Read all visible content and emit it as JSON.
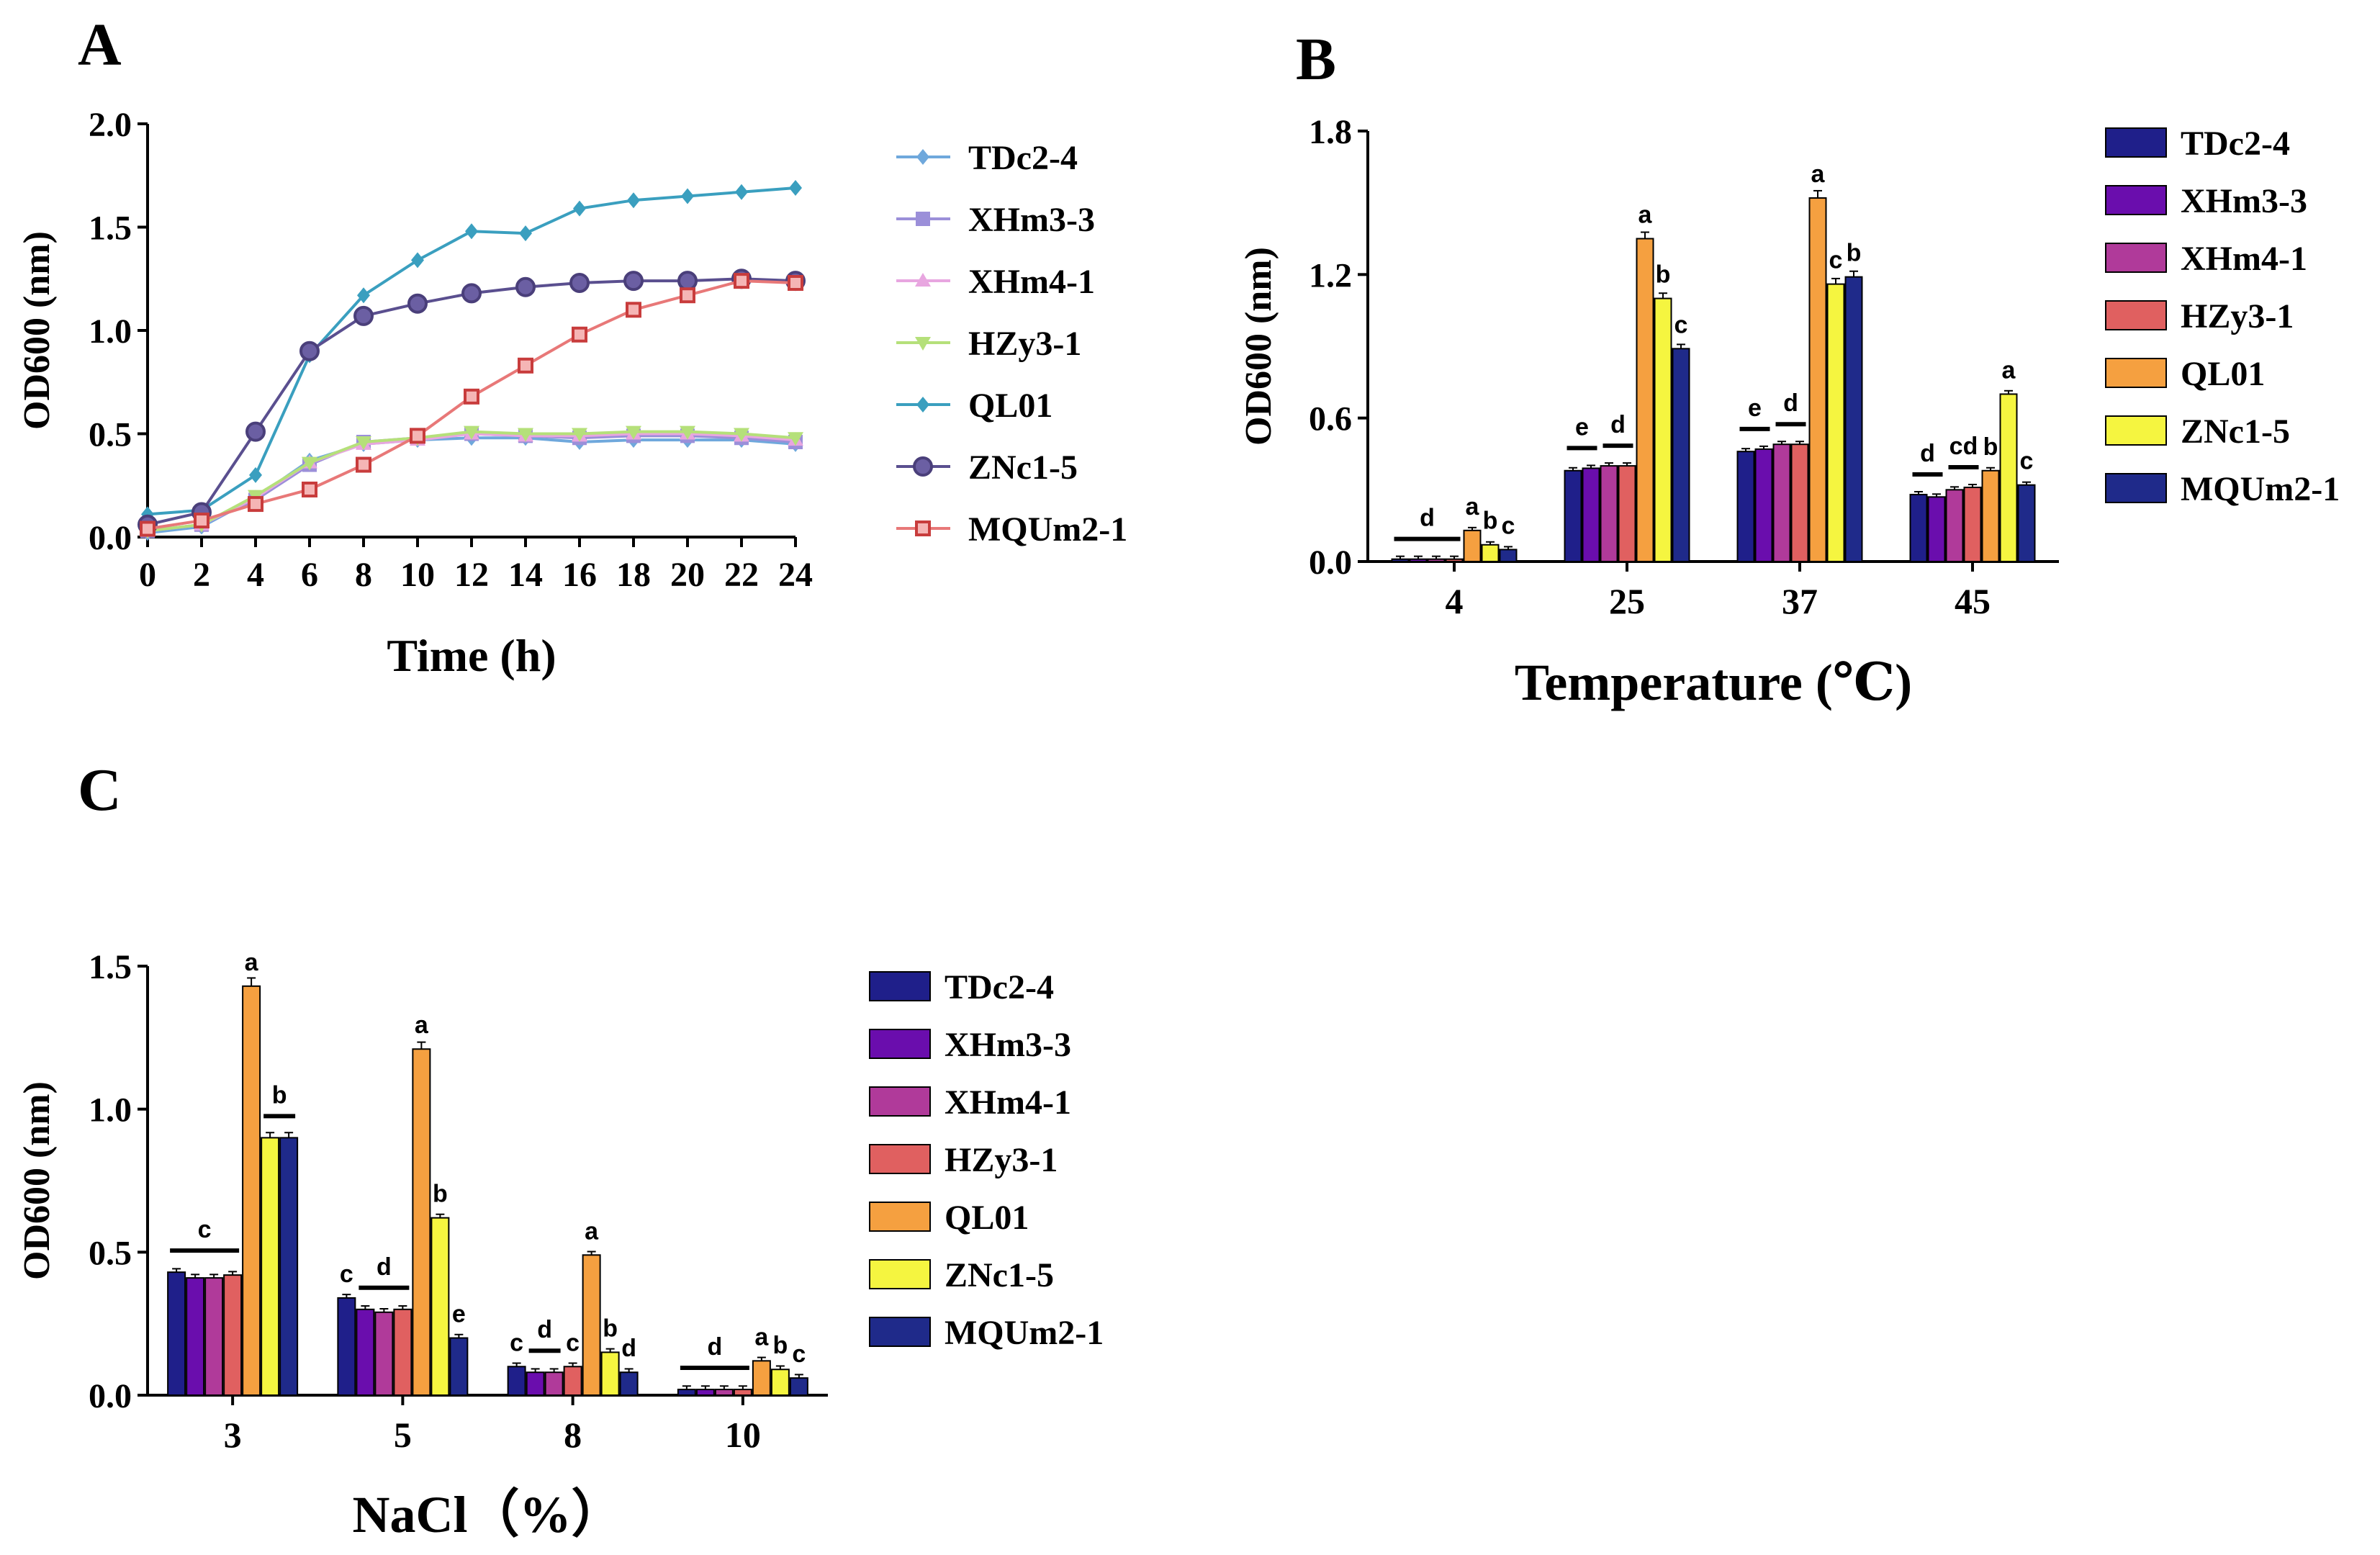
{
  "chart_data": [
    {
      "panel": "A",
      "type": "line",
      "xlabel": "Time (h)",
      "ylabel": "OD600 (nm)",
      "x": [
        0,
        2,
        4,
        6,
        8,
        10,
        12,
        14,
        16,
        18,
        20,
        22,
        24
      ],
      "xticks": [
        "0",
        "2",
        "4",
        "6",
        "8",
        "10",
        "12",
        "14",
        "16",
        "18",
        "20",
        "22",
        "24"
      ],
      "xlim": [
        0,
        24
      ],
      "ylim": [
        0,
        2.0
      ],
      "yticks": [
        "0.0",
        "0.5",
        "1.0",
        "1.5",
        "2.0"
      ],
      "legend_position": "right",
      "series": [
        {
          "name": "TDc2-4",
          "color": "#6fa8dc",
          "marker": "diamond",
          "values": [
            0.02,
            0.05,
            0.19,
            0.37,
            0.45,
            0.47,
            0.48,
            0.48,
            0.46,
            0.47,
            0.47,
            0.47,
            0.45
          ]
        },
        {
          "name": "XHm3-3",
          "color": "#9b8fd9",
          "marker": "square",
          "values": [
            0.03,
            0.06,
            0.18,
            0.35,
            0.46,
            0.48,
            0.5,
            0.49,
            0.48,
            0.49,
            0.49,
            0.48,
            0.46
          ]
        },
        {
          "name": "XHm4-1",
          "color": "#e8a6e0",
          "marker": "triangle-up",
          "values": [
            0.03,
            0.06,
            0.19,
            0.36,
            0.45,
            0.47,
            0.5,
            0.49,
            0.49,
            0.5,
            0.5,
            0.49,
            0.47
          ]
        },
        {
          "name": "HZy3-1",
          "color": "#b5e07a",
          "marker": "triangle-down",
          "values": [
            0.03,
            0.06,
            0.2,
            0.36,
            0.46,
            0.48,
            0.51,
            0.5,
            0.5,
            0.51,
            0.51,
            0.5,
            0.48
          ]
        },
        {
          "name": "QL01",
          "color": "#3a9fbf",
          "marker": "diamond",
          "values": [
            0.11,
            0.13,
            0.3,
            0.88,
            1.17,
            1.34,
            1.48,
            1.47,
            1.59,
            1.63,
            1.65,
            1.67,
            1.69
          ]
        },
        {
          "name": "ZNc1-5",
          "color": "#4a3f7a",
          "marker": "circle",
          "values": [
            0.06,
            0.12,
            0.51,
            0.9,
            1.07,
            1.13,
            1.18,
            1.21,
            1.23,
            1.24,
            1.24,
            1.25,
            1.24
          ]
        },
        {
          "name": "MQUm2-1",
          "color": "#e06b6b",
          "marker": "square-open",
          "values": [
            0.04,
            0.08,
            0.16,
            0.23,
            0.35,
            0.49,
            0.68,
            0.83,
            0.98,
            1.1,
            1.17,
            1.24,
            1.23
          ]
        }
      ]
    },
    {
      "panel": "B",
      "type": "bar",
      "xlabel": "Temperature (℃)",
      "ylabel": "OD600 (nm)",
      "categories": [
        "4",
        "25",
        "37",
        "45"
      ],
      "ylim": [
        0,
        1.8
      ],
      "yticks": [
        "0.0",
        "0.6",
        "1.2",
        "1.8"
      ],
      "legend_position": "right",
      "series": [
        {
          "name": "TDc2-4",
          "color": "#1f1f8a",
          "values": [
            0.01,
            0.38,
            0.46,
            0.28
          ]
        },
        {
          "name": "XHm3-3",
          "color": "#6a0dad",
          "values": [
            0.01,
            0.39,
            0.47,
            0.27
          ]
        },
        {
          "name": "XHm4-1",
          "color": "#b03a9a",
          "values": [
            0.01,
            0.4,
            0.49,
            0.3
          ]
        },
        {
          "name": "HZy3-1",
          "color": "#e06060",
          "values": [
            0.01,
            0.4,
            0.49,
            0.31
          ]
        },
        {
          "name": "QL01",
          "color": "#f5a040",
          "values": [
            0.13,
            1.35,
            1.52,
            0.38
          ]
        },
        {
          "name": "ZNc1-5",
          "color": "#f5f540",
          "values": [
            0.07,
            1.1,
            1.16,
            0.7
          ]
        },
        {
          "name": "MQUm2-1",
          "color": "#1f2a8a",
          "values": [
            0.05,
            0.89,
            1.19,
            0.32
          ]
        }
      ],
      "annotations": [
        {
          "text": "d",
          "cat": 0,
          "from": 0,
          "to": 3
        },
        {
          "text": "a",
          "cat": 0,
          "bar": 4
        },
        {
          "text": "b",
          "cat": 0,
          "bar": 5
        },
        {
          "text": "c",
          "cat": 0,
          "bar": 6
        },
        {
          "text": "e",
          "cat": 1,
          "from": 0,
          "to": 1
        },
        {
          "text": "d",
          "cat": 1,
          "from": 2,
          "to": 3
        },
        {
          "text": "a",
          "cat": 1,
          "bar": 4
        },
        {
          "text": "b",
          "cat": 1,
          "bar": 5
        },
        {
          "text": "c",
          "cat": 1,
          "bar": 6
        },
        {
          "text": "e",
          "cat": 2,
          "from": 0,
          "to": 1
        },
        {
          "text": "d",
          "cat": 2,
          "from": 2,
          "to": 3
        },
        {
          "text": "a",
          "cat": 2,
          "bar": 4
        },
        {
          "text": "c",
          "cat": 2,
          "bar": 5
        },
        {
          "text": "b",
          "cat": 2,
          "bar": 6
        },
        {
          "text": "d",
          "cat": 3,
          "from": 0,
          "to": 1
        },
        {
          "text": "cd",
          "cat": 3,
          "from": 2,
          "to": 3
        },
        {
          "text": "b",
          "cat": 3,
          "bar": 4
        },
        {
          "text": "a",
          "cat": 3,
          "bar": 5
        },
        {
          "text": "c",
          "cat": 3,
          "bar": 6
        }
      ]
    },
    {
      "panel": "C",
      "type": "bar",
      "xlabel": "NaCl（%）",
      "ylabel": "OD600 (nm)",
      "categories": [
        "3",
        "5",
        "8",
        "10"
      ],
      "ylim": [
        0,
        1.5
      ],
      "yticks": [
        "0.0",
        "0.5",
        "1.0",
        "1.5"
      ],
      "legend_position": "right",
      "series": [
        {
          "name": "TDc2-4",
          "color": "#1f1f8a",
          "values": [
            0.43,
            0.34,
            0.1,
            0.02
          ]
        },
        {
          "name": "XHm3-3",
          "color": "#6a0dad",
          "values": [
            0.41,
            0.3,
            0.08,
            0.02
          ]
        },
        {
          "name": "XHm4-1",
          "color": "#b03a9a",
          "values": [
            0.41,
            0.29,
            0.08,
            0.02
          ]
        },
        {
          "name": "HZy3-1",
          "color": "#e06060",
          "values": [
            0.42,
            0.3,
            0.1,
            0.02
          ]
        },
        {
          "name": "QL01",
          "color": "#f5a040",
          "values": [
            1.43,
            1.21,
            0.49,
            0.12
          ]
        },
        {
          "name": "ZNc1-5",
          "color": "#f5f540",
          "values": [
            0.9,
            0.62,
            0.15,
            0.09
          ]
        },
        {
          "name": "MQUm2-1",
          "color": "#1f2a8a",
          "values": [
            0.9,
            0.2,
            0.08,
            0.06
          ]
        }
      ],
      "annotations": [
        {
          "text": "c",
          "cat": 0,
          "from": 0,
          "to": 3
        },
        {
          "text": "a",
          "cat": 0,
          "bar": 4
        },
        {
          "text": "b",
          "cat": 0,
          "from": 5,
          "to": 6
        },
        {
          "text": "c",
          "cat": 1,
          "bar": 0
        },
        {
          "text": "d",
          "cat": 1,
          "from": 1,
          "to": 3
        },
        {
          "text": "a",
          "cat": 1,
          "bar": 4
        },
        {
          "text": "b",
          "cat": 1,
          "bar": 5
        },
        {
          "text": "e",
          "cat": 1,
          "bar": 6
        },
        {
          "text": "c",
          "cat": 2,
          "bar": 0
        },
        {
          "text": "d",
          "cat": 2,
          "from": 1,
          "to": 2
        },
        {
          "text": "c",
          "cat": 2,
          "bar": 3
        },
        {
          "text": "a",
          "cat": 2,
          "bar": 4
        },
        {
          "text": "b",
          "cat": 2,
          "bar": 5
        },
        {
          "text": "d",
          "cat": 2,
          "bar": 6
        },
        {
          "text": "d",
          "cat": 3,
          "from": 0,
          "to": 3
        },
        {
          "text": "a",
          "cat": 3,
          "bar": 4
        },
        {
          "text": "b",
          "cat": 3,
          "bar": 5
        },
        {
          "text": "c",
          "cat": 3,
          "bar": 6
        }
      ]
    }
  ]
}
